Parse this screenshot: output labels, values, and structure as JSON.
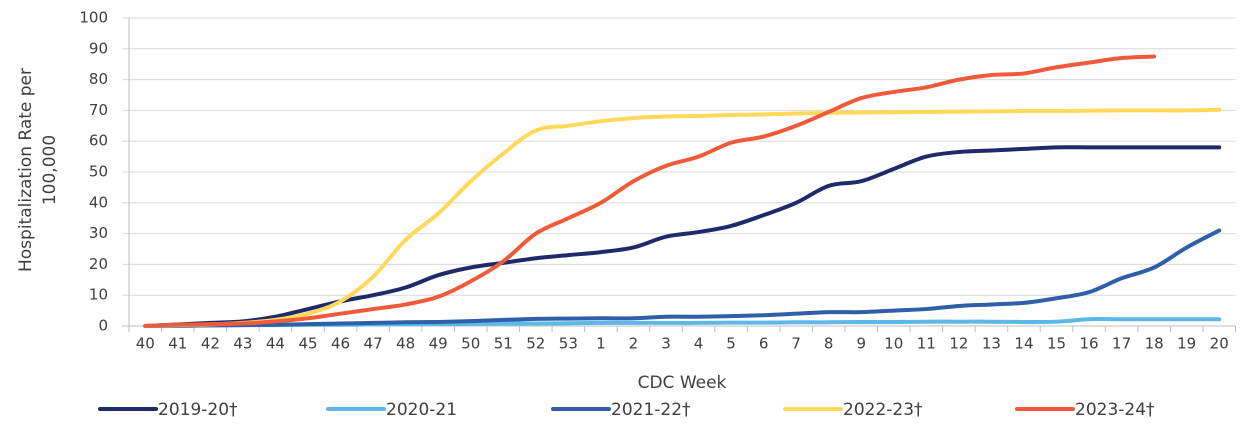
{
  "chart_data": {
    "type": "line",
    "x_label": "CDC Week",
    "y_label": "Hospitalization Rate per 100,000",
    "categories": [
      "40",
      "41",
      "42",
      "43",
      "44",
      "45",
      "46",
      "47",
      "48",
      "49",
      "50",
      "51",
      "52",
      "53",
      "1",
      "2",
      "3",
      "4",
      "5",
      "6",
      "7",
      "8",
      "9",
      "10",
      "11",
      "12",
      "13",
      "14",
      "15",
      "16",
      "17",
      "18",
      "19",
      "20"
    ],
    "ylim": [
      0,
      100
    ],
    "yticks": [
      0,
      10,
      20,
      30,
      40,
      50,
      60,
      70,
      80,
      90,
      100
    ],
    "grid": true,
    "legend": "bottom",
    "series": [
      {
        "name": "2019-20†",
        "color": "#1f2a6b",
        "values": [
          0,
          0.5,
          1,
          1.5,
          3,
          5.5,
          8,
          10,
          12.5,
          16.5,
          19,
          20.5,
          22,
          23,
          24,
          25.5,
          29,
          30.5,
          32.5,
          36,
          40,
          45.5,
          47,
          51,
          55,
          56.5,
          57,
          57.5,
          58,
          58,
          58,
          58,
          58,
          58
        ]
      },
      {
        "name": "2020-21",
        "color": "#5bb8e8",
        "values": [
          0,
          0.1,
          0.2,
          0.3,
          0.3,
          0.4,
          0.4,
          0.5,
          0.6,
          0.6,
          0.7,
          0.8,
          0.8,
          0.9,
          1,
          1,
          1,
          1,
          1.1,
          1.1,
          1.2,
          1.2,
          1.3,
          1.3,
          1.4,
          1.4,
          1.4,
          1.3,
          1.4,
          2.2,
          2.2,
          2.2,
          2.2,
          2.2
        ]
      },
      {
        "name": "2021-22†",
        "color": "#2e5fa8",
        "values": [
          0,
          0.1,
          0.2,
          0.3,
          0.4,
          0.6,
          0.8,
          1,
          1.2,
          1.3,
          1.6,
          2,
          2.3,
          2.4,
          2.5,
          2.5,
          3,
          3,
          3.2,
          3.5,
          4,
          4.5,
          4.5,
          5,
          5.5,
          6.5,
          7,
          7.5,
          9,
          11,
          15.5,
          19,
          25.5,
          31
        ]
      },
      {
        "name": "2022-23†",
        "color": "#ffd95a",
        "values": [
          0,
          0.3,
          0.5,
          1,
          2,
          4,
          8,
          16,
          28,
          36.5,
          47,
          56,
          63.5,
          65,
          66.5,
          67.5,
          68,
          68.2,
          68.5,
          68.7,
          69,
          69.2,
          69.3,
          69.4,
          69.5,
          69.6,
          69.7,
          69.8,
          69.8,
          69.9,
          70,
          70,
          70,
          70.2
        ]
      },
      {
        "name": "2023-24†",
        "color": "#ef5b3a",
        "values": [
          0,
          0.4,
          0.6,
          0.8,
          1.5,
          2.5,
          4,
          5.5,
          7,
          9.5,
          14.5,
          21,
          30,
          35,
          40,
          47,
          52,
          55,
          59.5,
          61.5,
          65,
          69.5,
          74,
          76,
          77.5,
          80,
          81.5,
          82,
          84,
          85.5,
          87,
          87.5,
          null,
          null
        ]
      }
    ]
  }
}
